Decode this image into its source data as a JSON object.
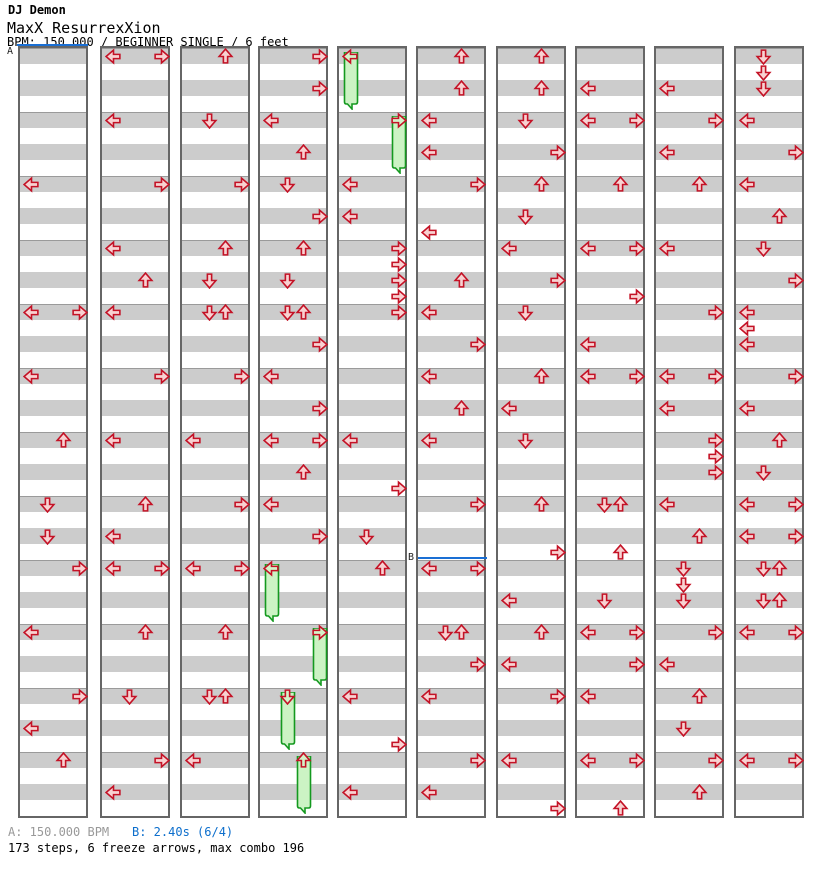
{
  "header": {
    "artist": "DJ Demon",
    "title": "MaxX ResurrexXion",
    "meta": "BPM: 150.000 / BEGINNER SINGLE / 6 feet"
  },
  "markers": {
    "a_label": "A",
    "b_label": "B",
    "b_column": 5,
    "b_row": 32
  },
  "footer": {
    "marker_a": "A: 150.000 BPM",
    "marker_b": "B: 2.40s (6/4)",
    "stats": "173 steps, 6 freeze arrows, max combo 196"
  },
  "colors": {
    "stripe_gray": "#cccccc",
    "column_border": "#666666",
    "measure_line": "#9a9a9a",
    "arrow_stroke": "#c41226",
    "arrow_fill": "#f8d2d2",
    "freeze_stroke": "#14991f",
    "freeze_fill": "#ccf3c4",
    "freeze_head_fill": "#d4f2c8",
    "marker_blue": "#1a6fd4",
    "footer_gray": "#999999"
  },
  "chart_data": {
    "type": "stepchart",
    "lanes": [
      "left",
      "down",
      "up",
      "right"
    ],
    "rows_per_column": 48,
    "row_unit": "8th note stripe",
    "time_signature_change": {
      "label": "B",
      "value": "2.40s (6/4)",
      "column": 5,
      "row": 32
    },
    "bpm": 150.0,
    "columns": [
      {
        "arrows": [
          [
            8,
            "L"
          ],
          [
            16,
            "L"
          ],
          [
            16,
            "R"
          ],
          [
            20,
            "L"
          ],
          [
            24,
            "U"
          ],
          [
            28,
            "D"
          ],
          [
            30,
            "D"
          ],
          [
            32,
            "R"
          ],
          [
            36,
            "L"
          ],
          [
            40,
            "R"
          ],
          [
            42,
            "L"
          ],
          [
            44,
            "U"
          ]
        ]
      },
      {
        "arrows": [
          [
            0,
            "L"
          ],
          [
            0,
            "R"
          ],
          [
            4,
            "L"
          ],
          [
            8,
            "R"
          ],
          [
            12,
            "L"
          ],
          [
            14,
            "U"
          ],
          [
            16,
            "L"
          ],
          [
            20,
            "R"
          ],
          [
            24,
            "L"
          ],
          [
            28,
            "U"
          ],
          [
            30,
            "L"
          ],
          [
            32,
            "L"
          ],
          [
            32,
            "R"
          ],
          [
            36,
            "U"
          ],
          [
            40,
            "D"
          ],
          [
            44,
            "R"
          ],
          [
            46,
            "L"
          ]
        ]
      },
      {
        "arrows": [
          [
            0,
            "U"
          ],
          [
            4,
            "D"
          ],
          [
            8,
            "R"
          ],
          [
            12,
            "U"
          ],
          [
            14,
            "D"
          ],
          [
            16,
            "D"
          ],
          [
            16,
            "U"
          ],
          [
            20,
            "R"
          ],
          [
            24,
            "L"
          ],
          [
            28,
            "R"
          ],
          [
            32,
            "L"
          ],
          [
            32,
            "R"
          ],
          [
            36,
            "U"
          ],
          [
            40,
            "D"
          ],
          [
            40,
            "U"
          ],
          [
            44,
            "L"
          ]
        ]
      },
      {
        "arrows": [
          [
            0,
            "R"
          ],
          [
            2,
            "R"
          ],
          [
            4,
            "L"
          ],
          [
            6,
            "U"
          ],
          [
            8,
            "D"
          ],
          [
            10,
            "R"
          ],
          [
            12,
            "U"
          ],
          [
            14,
            "D"
          ],
          [
            16,
            "D"
          ],
          [
            16,
            "U"
          ],
          [
            18,
            "R"
          ],
          [
            20,
            "L"
          ],
          [
            22,
            "R"
          ],
          [
            24,
            "L"
          ],
          [
            24,
            "R"
          ],
          [
            26,
            "U"
          ],
          [
            28,
            "L"
          ],
          [
            30,
            "R"
          ],
          [
            32,
            "L",
            4
          ],
          [
            36,
            "R",
            4
          ],
          [
            40,
            "D",
            4
          ],
          [
            44,
            "U",
            4
          ]
        ]
      },
      {
        "arrows": [
          [
            0,
            "L",
            4
          ],
          [
            4,
            "R",
            4
          ],
          [
            8,
            "L"
          ],
          [
            10,
            "L"
          ],
          [
            12,
            "R"
          ],
          [
            13,
            "R"
          ],
          [
            14,
            "R"
          ],
          [
            15,
            "R"
          ],
          [
            16,
            "R"
          ],
          [
            24,
            "L"
          ],
          [
            27,
            "R"
          ],
          [
            30,
            "D"
          ],
          [
            32,
            "U"
          ],
          [
            40,
            "L"
          ],
          [
            43,
            "R"
          ],
          [
            46,
            "L"
          ]
        ]
      },
      {
        "arrows": [
          [
            0,
            "U"
          ],
          [
            2,
            "U"
          ],
          [
            4,
            "L"
          ],
          [
            6,
            "L"
          ],
          [
            8,
            "R"
          ],
          [
            11,
            "L"
          ],
          [
            14,
            "U"
          ],
          [
            16,
            "L"
          ],
          [
            18,
            "R"
          ],
          [
            20,
            "L"
          ],
          [
            22,
            "U"
          ],
          [
            24,
            "L"
          ],
          [
            28,
            "R"
          ],
          [
            32,
            "L"
          ],
          [
            32,
            "R"
          ],
          [
            36,
            "D"
          ],
          [
            36,
            "U"
          ],
          [
            38,
            "R"
          ],
          [
            40,
            "L"
          ],
          [
            44,
            "R"
          ],
          [
            46,
            "L"
          ]
        ]
      },
      {
        "arrows": [
          [
            0,
            "U"
          ],
          [
            2,
            "U"
          ],
          [
            4,
            "D"
          ],
          [
            6,
            "R"
          ],
          [
            8,
            "U"
          ],
          [
            10,
            "D"
          ],
          [
            12,
            "L"
          ],
          [
            14,
            "R"
          ],
          [
            16,
            "D"
          ],
          [
            20,
            "U"
          ],
          [
            22,
            "L"
          ],
          [
            24,
            "D"
          ],
          [
            28,
            "U"
          ],
          [
            31,
            "R"
          ],
          [
            34,
            "L"
          ],
          [
            36,
            "U"
          ],
          [
            38,
            "L"
          ],
          [
            40,
            "R"
          ],
          [
            44,
            "L"
          ],
          [
            47,
            "R"
          ]
        ]
      },
      {
        "arrows": [
          [
            2,
            "L"
          ],
          [
            4,
            "L"
          ],
          [
            4,
            "R"
          ],
          [
            8,
            "U"
          ],
          [
            12,
            "L"
          ],
          [
            12,
            "R"
          ],
          [
            15,
            "R"
          ],
          [
            18,
            "L"
          ],
          [
            20,
            "L"
          ],
          [
            20,
            "R"
          ],
          [
            28,
            "D"
          ],
          [
            28,
            "U"
          ],
          [
            31,
            "U"
          ],
          [
            34,
            "D"
          ],
          [
            36,
            "L"
          ],
          [
            36,
            "R"
          ],
          [
            38,
            "R"
          ],
          [
            40,
            "L"
          ],
          [
            44,
            "L"
          ],
          [
            44,
            "R"
          ],
          [
            47,
            "U"
          ]
        ]
      },
      {
        "arrows": [
          [
            2,
            "L"
          ],
          [
            4,
            "R"
          ],
          [
            6,
            "L"
          ],
          [
            8,
            "U"
          ],
          [
            12,
            "L"
          ],
          [
            16,
            "R"
          ],
          [
            20,
            "L"
          ],
          [
            20,
            "R"
          ],
          [
            22,
            "L"
          ],
          [
            24,
            "R"
          ],
          [
            25,
            "R"
          ],
          [
            26,
            "R"
          ],
          [
            28,
            "L"
          ],
          [
            30,
            "U"
          ],
          [
            32,
            "D"
          ],
          [
            33,
            "D"
          ],
          [
            34,
            "D"
          ],
          [
            36,
            "R"
          ],
          [
            38,
            "L"
          ],
          [
            40,
            "U"
          ],
          [
            42,
            "D"
          ],
          [
            44,
            "R"
          ],
          [
            46,
            "U"
          ]
        ]
      },
      {
        "arrows": [
          [
            0,
            "D"
          ],
          [
            1,
            "D"
          ],
          [
            2,
            "D"
          ],
          [
            4,
            "L"
          ],
          [
            6,
            "R"
          ],
          [
            8,
            "L"
          ],
          [
            10,
            "U"
          ],
          [
            12,
            "D"
          ],
          [
            14,
            "R"
          ],
          [
            16,
            "L"
          ],
          [
            17,
            "L"
          ],
          [
            18,
            "L"
          ],
          [
            20,
            "R"
          ],
          [
            22,
            "L"
          ],
          [
            24,
            "U"
          ],
          [
            26,
            "D"
          ],
          [
            28,
            "L"
          ],
          [
            28,
            "R"
          ],
          [
            30,
            "L"
          ],
          [
            30,
            "R"
          ],
          [
            32,
            "D"
          ],
          [
            32,
            "U"
          ],
          [
            34,
            "D"
          ],
          [
            34,
            "U"
          ],
          [
            36,
            "L"
          ],
          [
            36,
            "R"
          ],
          [
            44,
            "L"
          ],
          [
            44,
            "R"
          ]
        ]
      }
    ]
  }
}
